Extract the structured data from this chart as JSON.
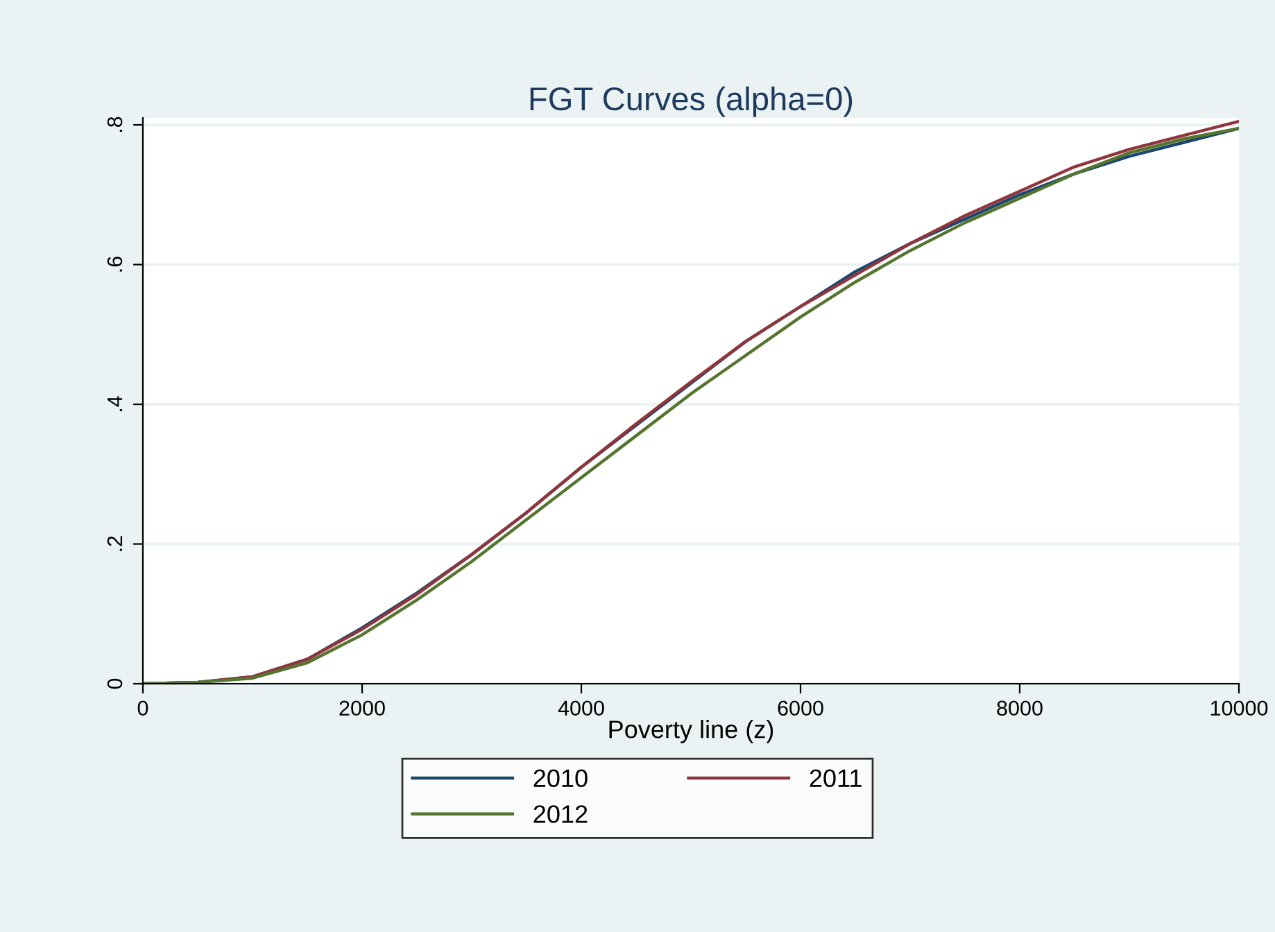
{
  "chart_data": {
    "type": "line",
    "title": "FGT Curves (alpha=0)",
    "xlabel": "Poverty line (z)",
    "x": [
      0,
      500,
      1000,
      1500,
      2000,
      2500,
      3000,
      3500,
      4000,
      4500,
      5000,
      5500,
      6000,
      6500,
      7000,
      7500,
      8000,
      8500,
      9000,
      9500,
      10000
    ],
    "series": [
      {
        "name": "2010",
        "color": "#1a476f",
        "values": [
          0,
          0.002,
          0.01,
          0.035,
          0.08,
          0.13,
          0.185,
          0.245,
          0.31,
          0.37,
          0.43,
          0.49,
          0.54,
          0.59,
          0.63,
          0.665,
          0.7,
          0.73,
          0.755,
          0.775,
          0.795
        ]
      },
      {
        "name": "2011",
        "color": "#90353b",
        "values": [
          0,
          0.002,
          0.01,
          0.035,
          0.078,
          0.128,
          0.185,
          0.245,
          0.31,
          0.372,
          0.432,
          0.49,
          0.54,
          0.585,
          0.63,
          0.67,
          0.705,
          0.74,
          0.765,
          0.785,
          0.805
        ]
      },
      {
        "name": "2012",
        "color": "#55752f",
        "values": [
          0,
          0.002,
          0.008,
          0.03,
          0.07,
          0.12,
          0.175,
          0.235,
          0.295,
          0.355,
          0.415,
          0.47,
          0.525,
          0.575,
          0.62,
          0.66,
          0.695,
          0.73,
          0.76,
          0.78,
          0.795
        ]
      }
    ],
    "xlim": [
      0,
      10000
    ],
    "xticks": [
      0,
      2000,
      4000,
      6000,
      8000,
      10000
    ],
    "ylim": [
      0,
      0.81
    ],
    "yticks": [
      0,
      {
        "value": 0.2,
        "label": ".2"
      },
      {
        "value": 0.4,
        "label": ".4"
      },
      {
        "value": 0.6,
        "label": ".6"
      },
      {
        "value": 0.8,
        "label": ".8"
      }
    ],
    "grid": "y",
    "legend": "bottom",
    "marker": "none",
    "line_style": "solid"
  }
}
